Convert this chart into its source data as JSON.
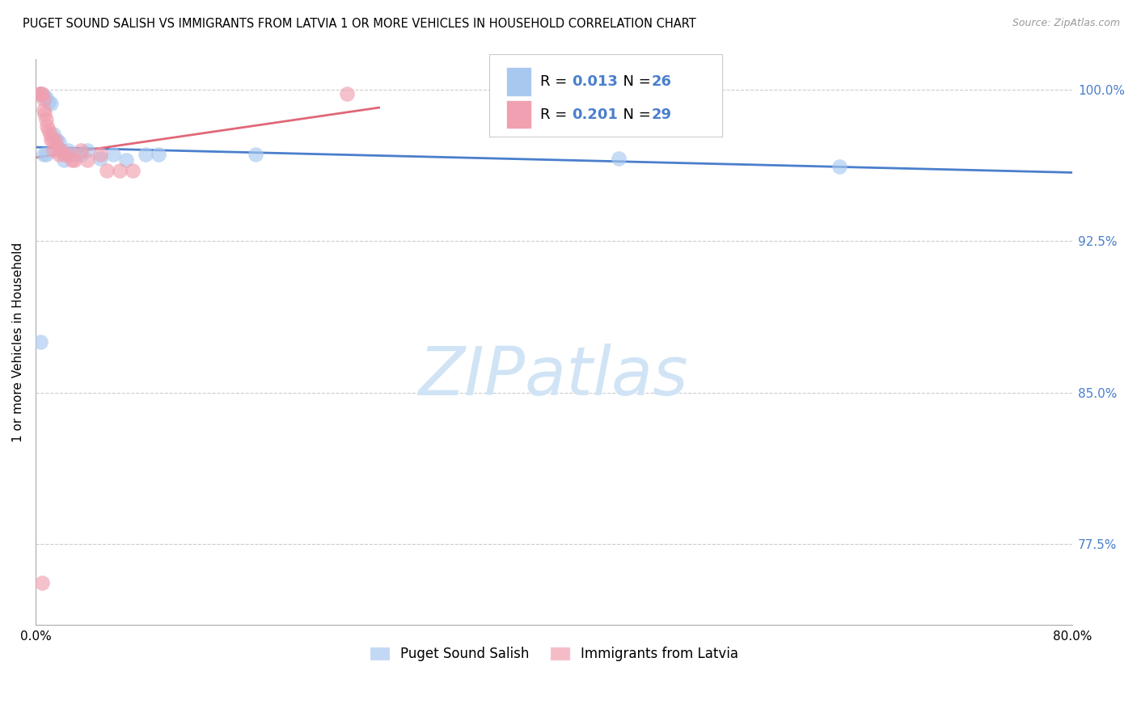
{
  "title": "PUGET SOUND SALISH VS IMMIGRANTS FROM LATVIA 1 OR MORE VEHICLES IN HOUSEHOLD CORRELATION CHART",
  "source": "Source: ZipAtlas.com",
  "ylabel": "1 or more Vehicles in Household",
  "xlim": [
    0.0,
    0.8
  ],
  "ylim": [
    0.735,
    1.015
  ],
  "yticks": [
    1.0,
    0.925,
    0.85,
    0.775
  ],
  "ytick_labels": [
    "100.0%",
    "92.5%",
    "85.0%",
    "77.5%"
  ],
  "xticks": [
    0.0,
    0.1,
    0.2,
    0.3,
    0.4,
    0.5,
    0.6,
    0.7,
    0.8
  ],
  "xtick_labels": [
    "0.0%",
    "",
    "",
    "",
    "",
    "",
    "",
    "",
    "80.0%"
  ],
  "blue_color": "#A8C8F0",
  "pink_color": "#F0A0B0",
  "blue_line_color": "#4A7FCC",
  "pink_line_color": "#E06878",
  "blue_R": 0.013,
  "blue_N": 26,
  "pink_R": 0.201,
  "pink_N": 29,
  "legend_label_blue": "Puget Sound Salish",
  "legend_label_pink": "Immigrants from Latvia",
  "watermark_color": "#D0E4F5",
  "blue_scatter_x": [
    0.004,
    0.006,
    0.008,
    0.01,
    0.012,
    0.014,
    0.016,
    0.018,
    0.02,
    0.022,
    0.025,
    0.03,
    0.035,
    0.04,
    0.05,
    0.06,
    0.07,
    0.085,
    0.095,
    0.17,
    0.004,
    0.008,
    0.45,
    0.62,
    0.006,
    0.025
  ],
  "blue_scatter_y": [
    0.998,
    0.997,
    0.996,
    0.994,
    0.993,
    0.978,
    0.975,
    0.974,
    0.97,
    0.965,
    0.97,
    0.968,
    0.968,
    0.97,
    0.966,
    0.968,
    0.965,
    0.968,
    0.968,
    0.968,
    0.875,
    0.968,
    0.966,
    0.962,
    0.968,
    0.968
  ],
  "pink_scatter_x": [
    0.003,
    0.004,
    0.005,
    0.006,
    0.006,
    0.007,
    0.008,
    0.009,
    0.01,
    0.011,
    0.012,
    0.013,
    0.014,
    0.015,
    0.016,
    0.018,
    0.02,
    0.022,
    0.025,
    0.028,
    0.03,
    0.035,
    0.04,
    0.05,
    0.055,
    0.065,
    0.075,
    0.24,
    0.005
  ],
  "pink_scatter_y": [
    0.998,
    0.998,
    0.998,
    0.995,
    0.99,
    0.988,
    0.985,
    0.982,
    0.98,
    0.978,
    0.975,
    0.975,
    0.97,
    0.975,
    0.972,
    0.968,
    0.97,
    0.968,
    0.968,
    0.965,
    0.965,
    0.97,
    0.965,
    0.968,
    0.96,
    0.96,
    0.96,
    0.998,
    0.756
  ],
  "pink_trendline_x": [
    0.0,
    0.265
  ],
  "blue_trendline_x": [
    0.0,
    0.8
  ]
}
